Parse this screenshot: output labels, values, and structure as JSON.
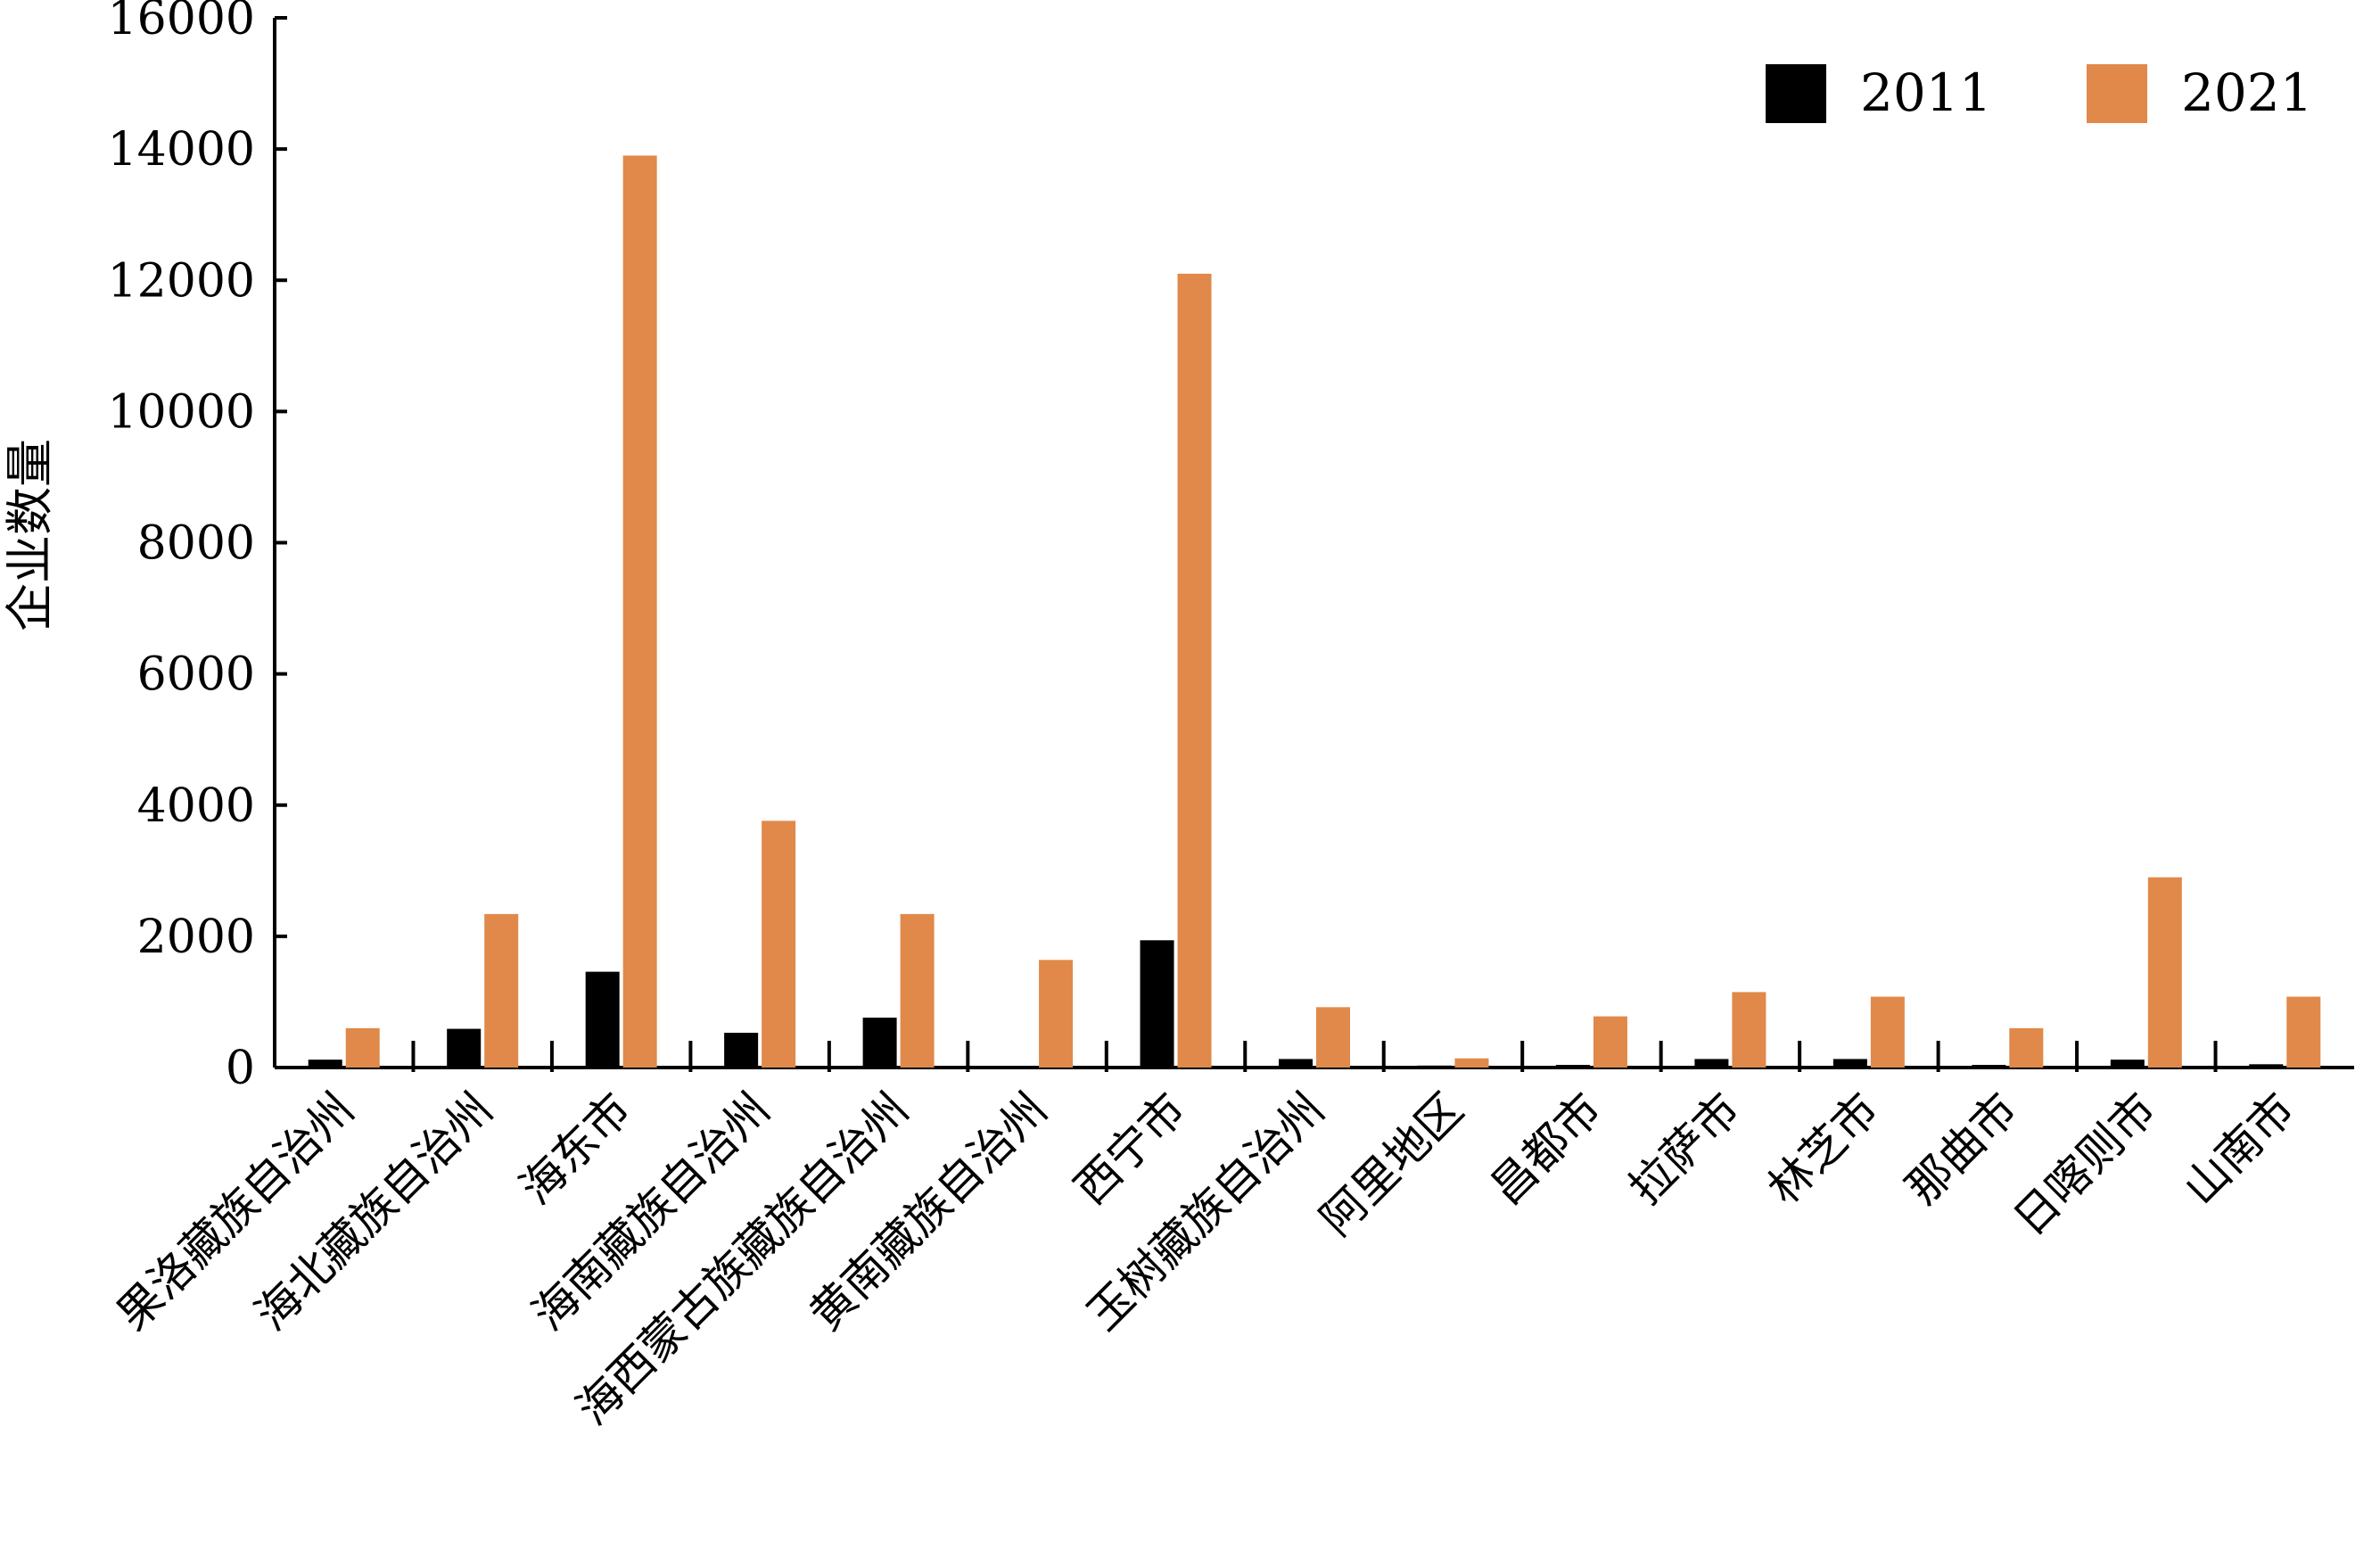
{
  "chart_data": {
    "type": "bar",
    "title": "",
    "xlabel": "",
    "ylabel": "企业数量",
    "ylim": [
      0,
      16000
    ],
    "yticks": [
      0,
      2000,
      4000,
      6000,
      8000,
      10000,
      12000,
      14000,
      16000
    ],
    "grid": false,
    "legend_position": "top-right",
    "categories": [
      "果洛藏族自治州",
      "海北藏族自治州",
      "海东市",
      "海南藏族自治州",
      "海西蒙古族藏族自治州",
      "黄南藏族自治州",
      "西宁市",
      "玉树藏族自治州",
      "阿里地区",
      "昌都市",
      "拉萨市",
      "林芝市",
      "那曲市",
      "日喀则市",
      "山南市"
    ],
    "series": [
      {
        "name": "2011",
        "color": "#000000",
        "values": [
          120,
          590,
          1460,
          530,
          760,
          20,
          1940,
          130,
          30,
          40,
          130,
          130,
          40,
          120,
          50
        ]
      },
      {
        "name": "2021",
        "color": "#E0894A",
        "values": [
          600,
          2340,
          13900,
          3760,
          2340,
          1640,
          12100,
          920,
          140,
          780,
          1150,
          1080,
          600,
          2900,
          1080
        ]
      }
    ]
  }
}
